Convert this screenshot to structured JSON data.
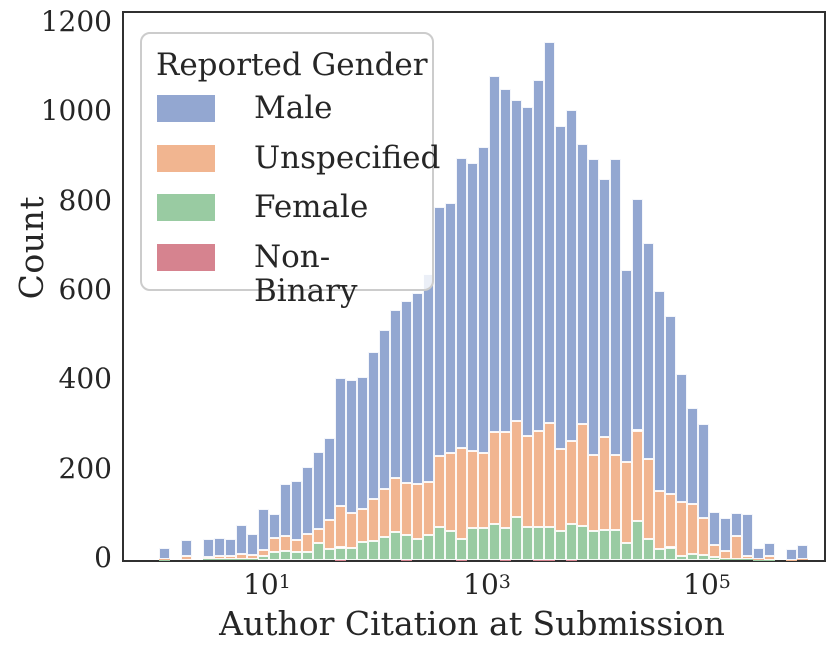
{
  "figure": {
    "xlabel": "Author Citation at Submission",
    "ylabel": "Count",
    "legend": {
      "title": "Reported Gender",
      "items": [
        {
          "label": "Male",
          "color": "#93a7d1"
        },
        {
          "label": "Unspecified",
          "color": "#f1b590"
        },
        {
          "label": "Female",
          "color": "#99cba2"
        },
        {
          "label": "Non-Binary",
          "color": "#d6838f"
        }
      ]
    }
  },
  "chart_data": {
    "type": "bar",
    "subtype": "stacked-histogram",
    "title": "",
    "xlabel": "Author Citation at Submission",
    "ylabel": "Count",
    "x_scale": "log10",
    "grid": false,
    "legend_position": "upper left",
    "legend_title": "Reported Gender",
    "ylim": [
      0,
      1225
    ],
    "xlim_log10": [
      -0.318,
      6.045
    ],
    "yticks": [
      0,
      200,
      400,
      600,
      800,
      1000,
      1200
    ],
    "xticks": [
      {
        "log10": 1,
        "base": "10",
        "exp": "1"
      },
      {
        "log10": 3,
        "base": "10",
        "exp": "3"
      },
      {
        "log10": 5,
        "base": "10",
        "exp": "5"
      }
    ],
    "bins": {
      "log10_start": 0.0,
      "log10_width": 0.1,
      "n": 59
    },
    "stack_order_bottom_to_top": [
      "Non-Binary",
      "Female",
      "Unspecified",
      "Male"
    ],
    "series": [
      {
        "name": "Male",
        "color": "#93a7d1",
        "values": [
          24,
          0,
          35,
          0,
          40,
          41,
          38,
          64,
          46,
          92,
          54,
          116,
          134,
          149,
          173,
          184,
          285,
          298,
          295,
          330,
          358,
          376,
          409,
          427,
          465,
          556,
          561,
          649,
          647,
          685,
          798,
          767,
          720,
          737,
          785,
          854,
          724,
          740,
          627,
          662,
          579,
          664,
          430,
          518,
          484,
          447,
          398,
          287,
          214,
          211,
          74,
          74,
          52,
          93,
          25,
          30,
          0,
          23,
          32
        ]
      },
      {
        "name": "Unspecified",
        "color": "#f1b590",
        "values": [
          2,
          0,
          9,
          0,
          5,
          6,
          6,
          11,
          9,
          14,
          31,
          34,
          27,
          40,
          32,
          65,
          94,
          79,
          75,
          94,
          107,
          120,
          116,
          125,
          120,
          159,
          175,
          204,
          171,
          168,
          206,
          215,
          215,
          204,
          215,
          231,
          183,
          187,
          228,
          171,
          207,
          167,
          182,
          203,
          180,
          131,
          120,
          120,
          112,
          83,
          26,
          18,
          52,
          8,
          2,
          7,
          0,
          1,
          2
        ]
      },
      {
        "name": "Female",
        "color": "#99cba2",
        "values": [
          1,
          0,
          0,
          0,
          2,
          2,
          3,
          3,
          3,
          8,
          18,
          20,
          17,
          19,
          37,
          24,
          27,
          27,
          40,
          42,
          51,
          63,
          55,
          46,
          55,
          75,
          64,
          46,
          72,
          72,
          81,
          71,
          96,
          73,
          73,
          74,
          66,
          79,
          77,
          65,
          68,
          68,
          37,
          87,
          46,
          24,
          28,
          10,
          14,
          11,
          7,
          2,
          2,
          2,
          1,
          1,
          0,
          0,
          0
        ]
      },
      {
        "name": "Non-Binary",
        "color": "#d6838f",
        "values": [
          0,
          0,
          0,
          0,
          0,
          0,
          0,
          0,
          0,
          0,
          0,
          0,
          0,
          0,
          0,
          0,
          1,
          0,
          0,
          0,
          0,
          0,
          1,
          0,
          0,
          0,
          0,
          1,
          0,
          0,
          0,
          1,
          0,
          0,
          1,
          1,
          0,
          1,
          0,
          0,
          0,
          0,
          0,
          0,
          0,
          0,
          0,
          0,
          0,
          0,
          0,
          0,
          0,
          0,
          0,
          0,
          0,
          0,
          0
        ]
      }
    ]
  }
}
